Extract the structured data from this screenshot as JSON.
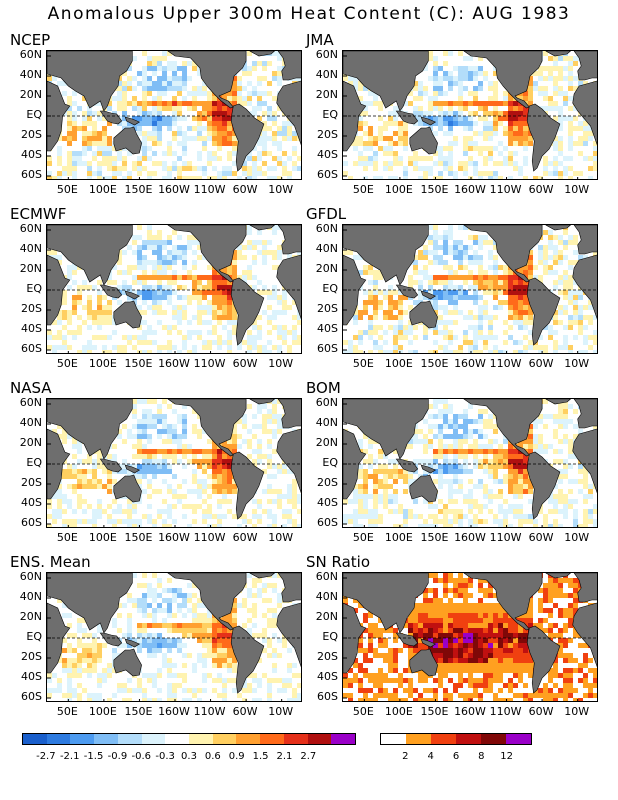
{
  "title": "Anomalous Upper 300m Heat Content (C): AUG 1983",
  "axes": {
    "lat_labels": [
      "60N",
      "40N",
      "20N",
      "EQ",
      "20S",
      "40S",
      "60S"
    ],
    "lon_labels": [
      "50E",
      "100E",
      "150E",
      "160W",
      "110W",
      "60W",
      "10W"
    ]
  },
  "panels": [
    {
      "label": "NCEP",
      "intensity": 1.0
    },
    {
      "label": "JMA",
      "intensity": 0.9
    },
    {
      "label": "ECMWF",
      "intensity": 0.85
    },
    {
      "label": "GFDL",
      "intensity": 0.95
    },
    {
      "label": "NASA",
      "intensity": 0.8
    },
    {
      "label": "BOM",
      "intensity": 0.9
    },
    {
      "label": "ENS. Mean",
      "intensity": 0.75
    },
    {
      "label": "SN Ratio",
      "intensity": 1.0
    }
  ],
  "colorbar_anomaly": {
    "colors": [
      "#1a5fcc",
      "#2e7be0",
      "#4d9bf0",
      "#7fbdf5",
      "#b3ddfa",
      "#dcf3fc",
      "#ffffff",
      "#fff3b0",
      "#ffcf60",
      "#ffa030",
      "#ff6a1a",
      "#e5301a",
      "#b01010",
      "#9a00c8"
    ],
    "labels": [
      "-2.7",
      "-2.1",
      "-1.5",
      "-0.9",
      "-0.6",
      "-0.3",
      "0.3",
      "0.6",
      "0.9",
      "1.5",
      "2.1",
      "2.7"
    ]
  },
  "colorbar_sn": {
    "colors": [
      "#ffffff",
      "#ffa020",
      "#f04010",
      "#c01010",
      "#800808",
      "#9a00c8"
    ],
    "labels": [
      "2",
      "4",
      "6",
      "8",
      "12"
    ]
  },
  "colors": {
    "land": "#6e6e6e",
    "equator_line": "#000000"
  }
}
